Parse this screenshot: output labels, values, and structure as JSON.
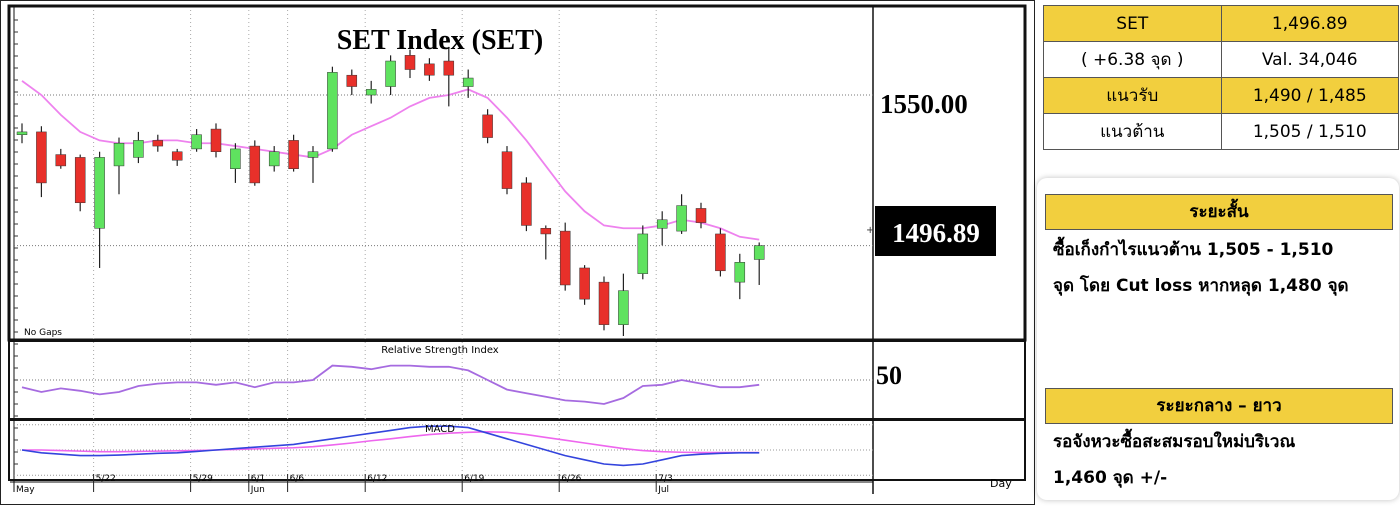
{
  "chart_data": {
    "type": "candlestick",
    "title": "SET Index (SET)",
    "price_labels": {
      "level": "1550.00",
      "last": "1496.89"
    },
    "ylim": [
      1465,
      1580
    ],
    "no_gaps_label": "No Gaps",
    "x_axis": {
      "day_label": "Day",
      "ticks": [
        {
          "label": "5/22",
          "index": 4
        },
        {
          "label": "5/29",
          "index": 9
        },
        {
          "label": "6/1",
          "index": 12
        },
        {
          "label": "6/6",
          "index": 14
        },
        {
          "label": "6/12",
          "index": 18
        },
        {
          "label": "6/19",
          "index": 23
        },
        {
          "label": "6/26",
          "index": 28
        },
        {
          "label": "7/3",
          "index": 33
        }
      ],
      "months": [
        {
          "label": "May",
          "index": 0
        },
        {
          "label": "Jun",
          "index": 12
        },
        {
          "label": "Jul",
          "index": 33
        }
      ]
    },
    "candles": [
      {
        "o": 1536,
        "c": 1537,
        "h": 1540,
        "l": 1533
      },
      {
        "o": 1537,
        "c": 1519,
        "h": 1539,
        "l": 1514
      },
      {
        "o": 1529,
        "c": 1525,
        "h": 1531,
        "l": 1524
      },
      {
        "o": 1528,
        "c": 1512,
        "h": 1529,
        "l": 1509
      },
      {
        "o": 1503,
        "c": 1528,
        "h": 1530,
        "l": 1489
      },
      {
        "o": 1525,
        "c": 1533,
        "h": 1535,
        "l": 1515
      },
      {
        "o": 1528,
        "c": 1534,
        "h": 1537,
        "l": 1526
      },
      {
        "o": 1534,
        "c": 1532,
        "h": 1536,
        "l": 1530
      },
      {
        "o": 1530,
        "c": 1527,
        "h": 1531,
        "l": 1525
      },
      {
        "o": 1531,
        "c": 1536,
        "h": 1538,
        "l": 1530
      },
      {
        "o": 1538,
        "c": 1530,
        "h": 1540,
        "l": 1528
      },
      {
        "o": 1524,
        "c": 1531,
        "h": 1533,
        "l": 1519
      },
      {
        "o": 1532,
        "c": 1519,
        "h": 1534,
        "l": 1518
      },
      {
        "o": 1525,
        "c": 1530,
        "h": 1532,
        "l": 1523
      },
      {
        "o": 1534,
        "c": 1524,
        "h": 1536,
        "l": 1523
      },
      {
        "o": 1528,
        "c": 1530,
        "h": 1532,
        "l": 1519
      },
      {
        "o": 1531,
        "c": 1558,
        "h": 1560,
        "l": 1530
      },
      {
        "o": 1557,
        "c": 1553,
        "h": 1559,
        "l": 1550
      },
      {
        "o": 1550,
        "c": 1552,
        "h": 1555,
        "l": 1547
      },
      {
        "o": 1553,
        "c": 1562,
        "h": 1564,
        "l": 1550
      },
      {
        "o": 1564,
        "c": 1559,
        "h": 1566,
        "l": 1556
      },
      {
        "o": 1561,
        "c": 1557,
        "h": 1563,
        "l": 1555
      },
      {
        "o": 1562,
        "c": 1557,
        "h": 1567,
        "l": 1546
      },
      {
        "o": 1553,
        "c": 1556,
        "h": 1559,
        "l": 1549
      },
      {
        "o": 1543,
        "c": 1535,
        "h": 1545,
        "l": 1533
      },
      {
        "o": 1530,
        "c": 1517,
        "h": 1532,
        "l": 1515
      },
      {
        "o": 1519,
        "c": 1504,
        "h": 1521,
        "l": 1502
      },
      {
        "o": 1503,
        "c": 1501,
        "h": 1504,
        "l": 1492
      },
      {
        "o": 1502,
        "c": 1483,
        "h": 1505,
        "l": 1481
      },
      {
        "o": 1489,
        "c": 1478,
        "h": 1490,
        "l": 1476
      },
      {
        "o": 1484,
        "c": 1469,
        "h": 1486,
        "l": 1467
      },
      {
        "o": 1469,
        "c": 1481,
        "h": 1487,
        "l": 1465
      },
      {
        "o": 1487,
        "c": 1501,
        "h": 1504,
        "l": 1485
      },
      {
        "o": 1503,
        "c": 1506,
        "h": 1509,
        "l": 1497
      },
      {
        "o": 1502,
        "c": 1511,
        "h": 1515,
        "l": 1501
      },
      {
        "o": 1510,
        "c": 1505,
        "h": 1512,
        "l": 1503
      },
      {
        "o": 1501,
        "c": 1488,
        "h": 1503,
        "l": 1486
      },
      {
        "o": 1484,
        "c": 1491,
        "h": 1494,
        "l": 1478
      },
      {
        "o": 1492,
        "c": 1496.89,
        "h": 1498,
        "l": 1483
      }
    ],
    "ma": [
      1555,
      1550,
      1543,
      1537,
      1534,
      1533,
      1533,
      1534,
      1534,
      1533,
      1533,
      1532,
      1531,
      1530,
      1529,
      1528,
      1531,
      1536,
      1539,
      1542,
      1546,
      1549,
      1550,
      1552,
      1549,
      1542,
      1534,
      1525,
      1516,
      1509,
      1504,
      1503,
      1503,
      1504,
      1506,
      1505,
      1503,
      1500,
      1499
    ],
    "rsi": {
      "label": "Relative Strength Index",
      "level_label": "50",
      "ylim": [
        20,
        80
      ],
      "values": [
        44,
        40,
        43,
        41,
        38,
        40,
        45,
        47,
        48,
        48,
        46,
        48,
        44,
        48,
        48,
        50,
        62,
        61,
        59,
        62,
        62,
        61,
        61,
        58,
        50,
        42,
        39,
        36,
        33,
        32,
        30,
        35,
        45,
        46,
        50,
        47,
        44,
        44,
        46
      ]
    },
    "macd": {
      "label": "MACD",
      "ylim": [
        -10,
        10
      ],
      "macd": [
        0,
        -1,
        -1.5,
        -2,
        -2,
        -1.8,
        -1.5,
        -1.2,
        -1,
        -0.5,
        0,
        0.5,
        1,
        1.5,
        2,
        3,
        4,
        5,
        6,
        7,
        8,
        8.5,
        8.5,
        8,
        6,
        4,
        2,
        0,
        -2,
        -3.5,
        -5,
        -5.5,
        -5,
        -3.5,
        -2,
        -1.5,
        -1.2,
        -1,
        -1
      ],
      "signal": [
        0,
        0,
        -0.2,
        -0.4,
        -0.6,
        -0.6,
        -0.5,
        -0.4,
        -0.3,
        -0.2,
        0,
        0.2,
        0.4,
        0.6,
        0.8,
        1.2,
        1.8,
        2.5,
        3.3,
        4,
        4.8,
        5.5,
        6,
        6.3,
        6.5,
        6.3,
        5.5,
        4.5,
        3.5,
        2.5,
        1.5,
        0.5,
        -0.2,
        -0.6,
        -0.8,
        -0.9,
        -0.9,
        -0.9,
        -0.9
      ]
    }
  },
  "summary": {
    "rows": [
      [
        "SET",
        "1,496.89"
      ],
      [
        "( +6.38 จุด )",
        "Val. 34,046"
      ],
      [
        "แนวรับ",
        "1,490 / 1,485"
      ],
      [
        "แนวต้าน",
        "1,505 / 1,510"
      ]
    ]
  },
  "short_term": {
    "title": "ระยะสั้น",
    "line1": "ซื้อเก็งกำไรแนวต้าน 1,505 - 1,510",
    "line2": "จุด โดย Cut loss หากหลุด 1,480 จุด"
  },
  "mid_term": {
    "title": "ระยะกลาง – ยาว",
    "line1": "รอจังหวะซื้อสะสมรอบใหม่บริเวณ",
    "line2": "1,460 จุด +/-"
  },
  "colors": {
    "up": "#5fe25f",
    "down": "#e8302a",
    "ma": "#ee82ee",
    "rsi": "#a66be0",
    "macd": "#3344dd",
    "signal": "#ee66ee",
    "accent": "#f2cf3e"
  }
}
